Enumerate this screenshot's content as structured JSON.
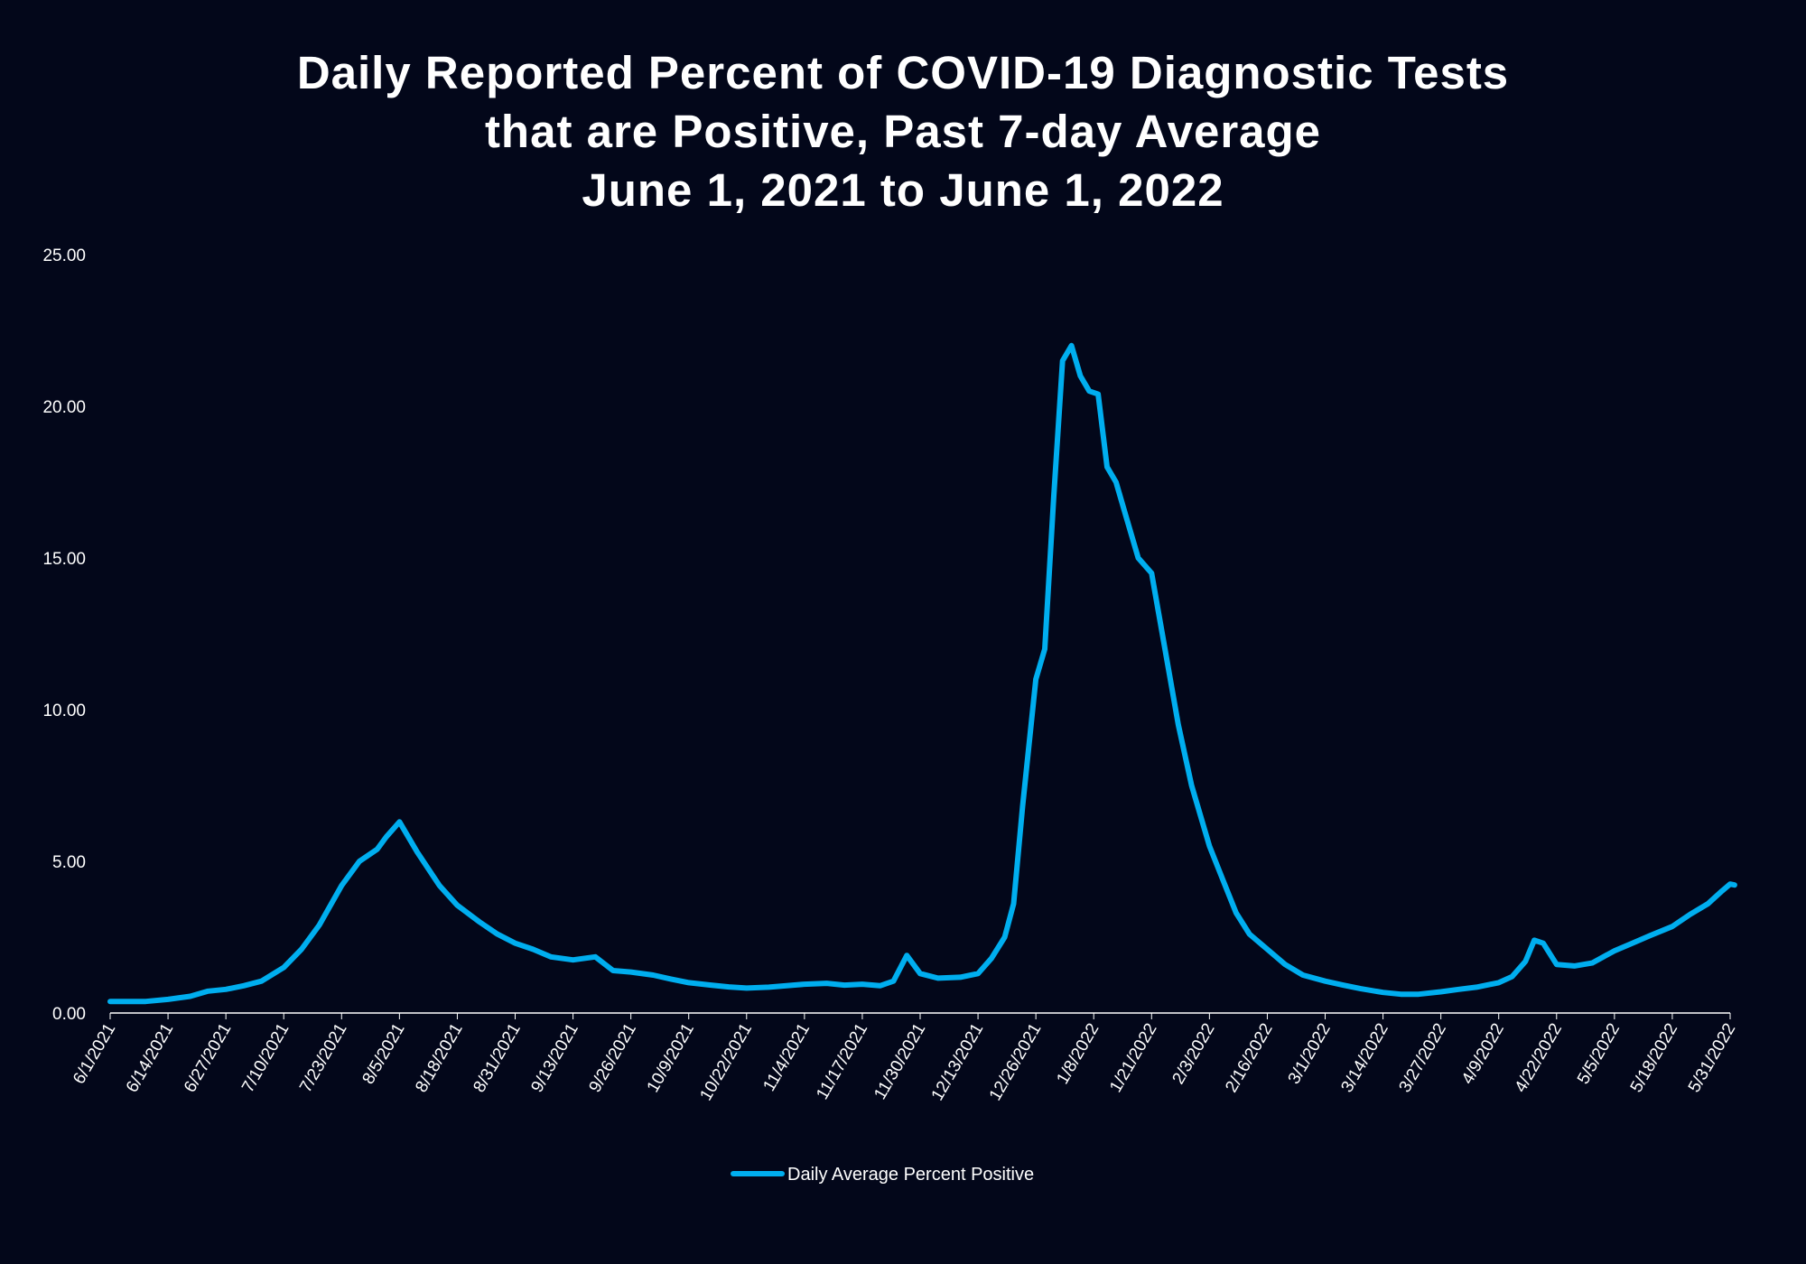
{
  "colors": {
    "background": "#03071a",
    "series": "#00aeef",
    "axis": "#ffffff",
    "text": "#ffffff"
  },
  "chart_data": {
    "type": "line",
    "title_lines": [
      "Daily Reported Percent of COVID-19 Diagnostic Tests",
      "that are Positive, Past 7-day Average",
      "June 1, 2021 to June 1, 2022"
    ],
    "xlabel": "",
    "ylabel": "",
    "ylim": [
      0,
      25
    ],
    "y_ticks": [
      "0.00",
      "5.00",
      "10.00",
      "15.00",
      "20.00",
      "25.00"
    ],
    "x_tick_labels": [
      "6/1/2021",
      "6/14/2021",
      "6/27/2021",
      "7/10/2021",
      "7/23/2021",
      "8/5/2021",
      "8/18/2021",
      "8/31/2021",
      "9/13/2021",
      "9/26/2021",
      "10/9/2021",
      "10/22/2021",
      "11/4/2021",
      "11/17/2021",
      "11/30/2021",
      "12/13/2021",
      "12/26/2021",
      "1/8/2022",
      "1/21/2022",
      "2/3/2022",
      "2/16/2022",
      "3/1/2022",
      "3/14/2022",
      "3/27/2022",
      "4/9/2022",
      "4/22/2022",
      "5/5/2022",
      "5/18/2022",
      "5/31/2022"
    ],
    "grid": false,
    "legend_position": "bottom-center",
    "series": [
      {
        "name": "Daily Average Percent Positive",
        "x": [
          "6/1/2021",
          "6/5/2021",
          "6/9/2021",
          "6/14/2021",
          "6/19/2021",
          "6/23/2021",
          "6/27/2021",
          "7/1/2021",
          "7/5/2021",
          "7/10/2021",
          "7/14/2021",
          "7/18/2021",
          "7/23/2021",
          "7/27/2021",
          "7/31/2021",
          "8/2/2021",
          "8/5/2021",
          "8/9/2021",
          "8/14/2021",
          "8/18/2021",
          "8/23/2021",
          "8/27/2021",
          "8/31/2021",
          "9/4/2021",
          "9/8/2021",
          "9/13/2021",
          "9/18/2021",
          "9/22/2021",
          "9/26/2021",
          "10/1/2021",
          "10/5/2021",
          "10/9/2021",
          "10/14/2021",
          "10/18/2021",
          "10/22/2021",
          "10/27/2021",
          "10/31/2021",
          "11/4/2021",
          "11/9/2021",
          "11/13/2021",
          "11/17/2021",
          "11/21/2021",
          "11/24/2021",
          "11/27/2021",
          "11/30/2021",
          "12/4/2021",
          "12/9/2021",
          "12/13/2021",
          "12/16/2021",
          "12/19/2021",
          "12/21/2021",
          "12/23/2021",
          "12/26/2021",
          "12/28/2021",
          "12/30/2021",
          "1/1/2022",
          "1/3/2022",
          "1/5/2022",
          "1/7/2022",
          "1/9/2022",
          "1/11/2022",
          "1/13/2022",
          "1/15/2022",
          "1/18/2022",
          "1/21/2022",
          "1/24/2022",
          "1/27/2022",
          "1/30/2022",
          "2/3/2022",
          "2/6/2022",
          "2/9/2022",
          "2/12/2022",
          "2/16/2022",
          "2/20/2022",
          "2/24/2022",
          "3/1/2022",
          "3/5/2022",
          "3/9/2022",
          "3/14/2022",
          "3/18/2022",
          "3/22/2022",
          "3/27/2022",
          "3/31/2022",
          "4/4/2022",
          "4/9/2022",
          "4/12/2022",
          "4/15/2022",
          "4/17/2022",
          "4/19/2022",
          "4/22/2022",
          "4/26/2022",
          "4/30/2022",
          "5/5/2022",
          "5/9/2022",
          "5/13/2022",
          "5/18/2022",
          "5/22/2022",
          "5/26/2022",
          "5/29/2022",
          "5/31/2022",
          "6/1/2022"
        ],
        "values": [
          0.38,
          0.38,
          0.38,
          0.45,
          0.55,
          0.72,
          0.78,
          0.9,
          1.05,
          1.5,
          2.1,
          2.9,
          4.2,
          5.0,
          5.4,
          5.8,
          6.3,
          5.3,
          4.2,
          3.55,
          3.0,
          2.6,
          2.3,
          2.1,
          1.85,
          1.75,
          1.85,
          1.4,
          1.35,
          1.25,
          1.12,
          1.0,
          0.92,
          0.86,
          0.82,
          0.85,
          0.9,
          0.95,
          0.98,
          0.92,
          0.95,
          0.9,
          1.05,
          1.9,
          1.3,
          1.15,
          1.18,
          1.3,
          1.8,
          2.5,
          3.6,
          6.8,
          11.0,
          12.0,
          17.0,
          21.5,
          22.0,
          21.0,
          20.5,
          20.4,
          18.0,
          17.5,
          16.5,
          15.0,
          14.5,
          12.0,
          9.5,
          7.5,
          5.5,
          4.4,
          3.3,
          2.6,
          2.1,
          1.6,
          1.25,
          1.05,
          0.92,
          0.8,
          0.68,
          0.62,
          0.62,
          0.7,
          0.78,
          0.85,
          1.0,
          1.2,
          1.7,
          2.4,
          2.3,
          1.6,
          1.55,
          1.65,
          2.05,
          2.3,
          2.55,
          2.85,
          3.25,
          3.6,
          4.0,
          4.25,
          4.22
        ]
      }
    ]
  }
}
